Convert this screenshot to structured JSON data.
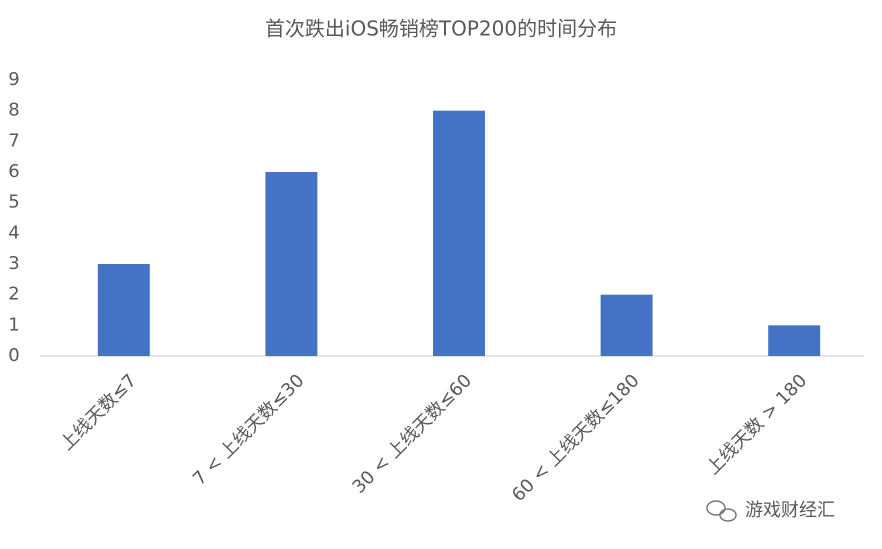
{
  "chart_data": {
    "type": "bar",
    "title": "首次跌出iOS畅销榜TOP200的时间分布",
    "categories": [
      "上线天数≤7",
      "7 < 上线天数≤30",
      "30 < 上线天数≤60",
      "60 < 上线天数≤180",
      "上线天数 > 180"
    ],
    "values": [
      3,
      6,
      8,
      2,
      1
    ],
    "color": "#4472c4",
    "ylim": [
      0,
      9
    ],
    "yticks": [
      0,
      1,
      2,
      3,
      4,
      5,
      6,
      7,
      8,
      9
    ],
    "grid": false,
    "watermark": "游戏财经汇"
  }
}
